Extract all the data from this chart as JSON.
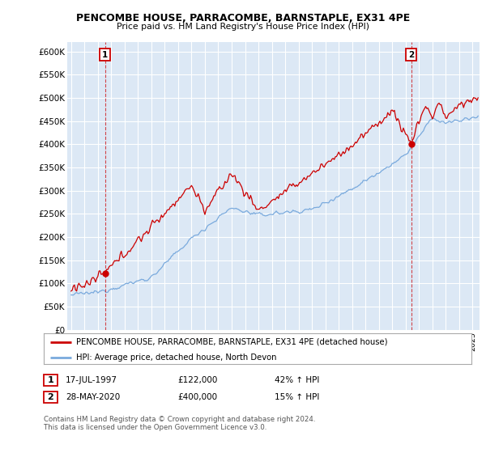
{
  "title": "PENCOMBE HOUSE, PARRACOMBE, BARNSTAPLE, EX31 4PE",
  "subtitle": "Price paid vs. HM Land Registry's House Price Index (HPI)",
  "red_label": "PENCOMBE HOUSE, PARRACOMBE, BARNSTAPLE, EX31 4PE (detached house)",
  "blue_label": "HPI: Average price, detached house, North Devon",
  "transaction1_date": "17-JUL-1997",
  "transaction1_price": "£122,000",
  "transaction1_hpi": "42% ↑ HPI",
  "transaction2_date": "28-MAY-2020",
  "transaction2_price": "£400,000",
  "transaction2_hpi": "15% ↑ HPI",
  "footer": "Contains HM Land Registry data © Crown copyright and database right 2024.\nThis data is licensed under the Open Government Licence v3.0.",
  "ylim": [
    0,
    620000
  ],
  "xlim_start": 1994.7,
  "xlim_end": 2025.5,
  "red_color": "#cc0000",
  "blue_color": "#7aaadd",
  "chart_bg": "#dce8f5",
  "background_color": "#ffffff",
  "grid_color": "#ffffff"
}
